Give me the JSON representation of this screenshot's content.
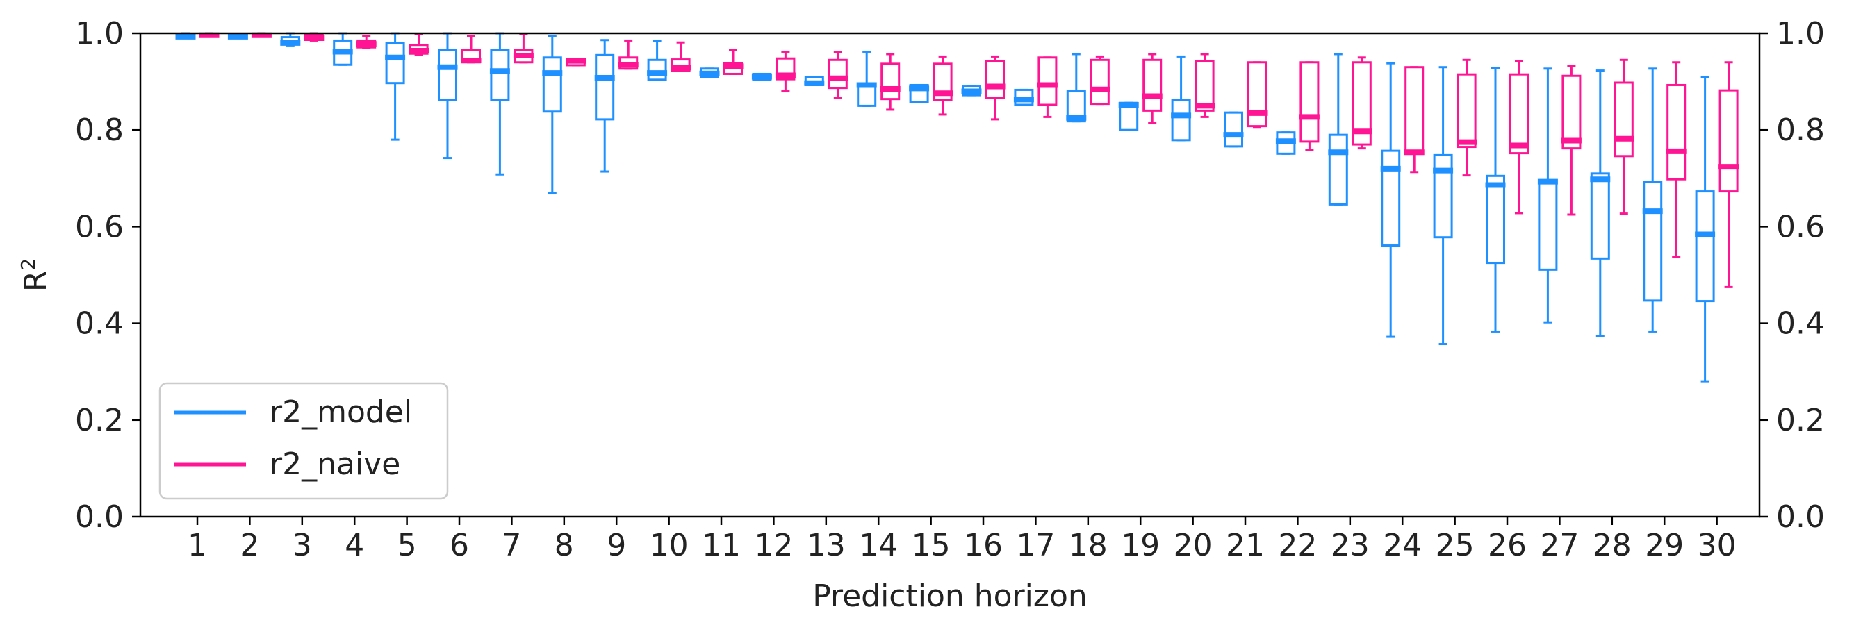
{
  "chart_data": {
    "type": "box",
    "xlabel": "Prediction horizon",
    "ylabel_base": "R",
    "ylabel_sup": "2",
    "ylim": [
      0.0,
      1.0
    ],
    "yticks": [
      0.0,
      0.2,
      0.4,
      0.6,
      0.8,
      1.0
    ],
    "ytick_labels": [
      "0.0",
      "0.2",
      "0.4",
      "0.6",
      "0.8",
      "1.0"
    ],
    "right_axis_labels": true,
    "legend_position": "lower-left",
    "categories": [
      1,
      2,
      3,
      4,
      5,
      6,
      7,
      8,
      9,
      10,
      11,
      12,
      13,
      14,
      15,
      16,
      17,
      18,
      19,
      20,
      21,
      22,
      23,
      24,
      25,
      26,
      27,
      28,
      29,
      30
    ],
    "series": [
      {
        "name": "r2_model",
        "color": "#1e90ff",
        "boxes": [
          {
            "whislo": 0.99,
            "q1": 0.991,
            "med": 0.993,
            "q3": 0.998,
            "whishi": 1.0
          },
          {
            "whislo": 0.99,
            "q1": 0.991,
            "med": 0.993,
            "q3": 0.997,
            "whishi": 0.999
          },
          {
            "whislo": 0.975,
            "q1": 0.978,
            "med": 0.98,
            "q3": 0.992,
            "whishi": 1.0
          },
          {
            "whislo": 0.935,
            "q1": 0.935,
            "med": 0.962,
            "q3": 0.985,
            "whishi": 1.0
          },
          {
            "whislo": 0.78,
            "q1": 0.897,
            "med": 0.95,
            "q3": 0.98,
            "whishi": 1.0
          },
          {
            "whislo": 0.742,
            "q1": 0.862,
            "med": 0.93,
            "q3": 0.966,
            "whishi": 1.0
          },
          {
            "whislo": 0.708,
            "q1": 0.862,
            "med": 0.922,
            "q3": 0.966,
            "whishi": 1.0
          },
          {
            "whislo": 0.67,
            "q1": 0.838,
            "med": 0.918,
            "q3": 0.95,
            "whishi": 0.994
          },
          {
            "whislo": 0.714,
            "q1": 0.822,
            "med": 0.908,
            "q3": 0.955,
            "whishi": 0.986
          },
          {
            "whislo": 0.904,
            "q1": 0.904,
            "med": 0.918,
            "q3": 0.945,
            "whishi": 0.984
          },
          {
            "whislo": 0.91,
            "q1": 0.91,
            "med": 0.917,
            "q3": 0.927,
            "whishi": 0.927
          },
          {
            "whislo": 0.903,
            "q1": 0.903,
            "med": 0.91,
            "q3": 0.916,
            "whishi": 0.916
          },
          {
            "whislo": 0.893,
            "q1": 0.893,
            "med": 0.897,
            "q3": 0.91,
            "whishi": 0.91
          },
          {
            "whislo": 0.85,
            "q1": 0.85,
            "med": 0.893,
            "q3": 0.893,
            "whishi": 0.962
          },
          {
            "whislo": 0.858,
            "q1": 0.858,
            "med": 0.886,
            "q3": 0.893,
            "whishi": 0.893
          },
          {
            "whislo": 0.872,
            "q1": 0.872,
            "med": 0.88,
            "q3": 0.89,
            "whishi": 0.89
          },
          {
            "whislo": 0.852,
            "q1": 0.852,
            "med": 0.863,
            "q3": 0.883,
            "whishi": 0.883
          },
          {
            "whislo": 0.818,
            "q1": 0.818,
            "med": 0.825,
            "q3": 0.88,
            "whishi": 0.957
          },
          {
            "whislo": 0.8,
            "q1": 0.8,
            "med": 0.852,
            "q3": 0.856,
            "whishi": 0.856
          },
          {
            "whislo": 0.779,
            "q1": 0.779,
            "med": 0.83,
            "q3": 0.862,
            "whishi": 0.952
          },
          {
            "whislo": 0.766,
            "q1": 0.766,
            "med": 0.79,
            "q3": 0.836,
            "whishi": 0.836
          },
          {
            "whislo": 0.751,
            "q1": 0.751,
            "med": 0.777,
            "q3": 0.795,
            "whishi": 0.795
          },
          {
            "whislo": 0.646,
            "q1": 0.646,
            "med": 0.754,
            "q3": 0.79,
            "whishi": 0.957
          },
          {
            "whislo": 0.372,
            "q1": 0.561,
            "med": 0.72,
            "q3": 0.757,
            "whishi": 0.938
          },
          {
            "whislo": 0.357,
            "q1": 0.578,
            "med": 0.716,
            "q3": 0.748,
            "whishi": 0.93
          },
          {
            "whislo": 0.383,
            "q1": 0.525,
            "med": 0.686,
            "q3": 0.705,
            "whishi": 0.928
          },
          {
            "whislo": 0.402,
            "q1": 0.511,
            "med": 0.693,
            "q3": 0.693,
            "whishi": 0.927
          },
          {
            "whislo": 0.373,
            "q1": 0.534,
            "med": 0.698,
            "q3": 0.71,
            "whishi": 0.923
          },
          {
            "whislo": 0.383,
            "q1": 0.447,
            "med": 0.632,
            "q3": 0.692,
            "whishi": 0.927
          },
          {
            "whislo": 0.28,
            "q1": 0.446,
            "med": 0.584,
            "q3": 0.673,
            "whishi": 0.91
          }
        ]
      },
      {
        "name": "r2_naive",
        "color": "#ff1493",
        "boxes": [
          {
            "whislo": 0.993,
            "q1": 0.994,
            "med": 0.996,
            "q3": 0.999,
            "whishi": 1.0
          },
          {
            "whislo": 0.993,
            "q1": 0.994,
            "med": 0.996,
            "q3": 0.999,
            "whishi": 1.0
          },
          {
            "whislo": 0.985,
            "q1": 0.987,
            "med": 0.99,
            "q3": 0.997,
            "whishi": 1.0
          },
          {
            "whislo": 0.97,
            "q1": 0.971,
            "med": 0.978,
            "q3": 0.985,
            "whishi": 0.995
          },
          {
            "whislo": 0.955,
            "q1": 0.958,
            "med": 0.964,
            "q3": 0.976,
            "whishi": 0.998
          },
          {
            "whislo": 0.94,
            "q1": 0.94,
            "med": 0.944,
            "q3": 0.966,
            "whishi": 0.995
          },
          {
            "whislo": 0.94,
            "q1": 0.94,
            "med": 0.954,
            "q3": 0.966,
            "whishi": 0.998
          },
          {
            "whislo": 0.934,
            "q1": 0.934,
            "med": 0.943,
            "q3": 0.946,
            "whishi": 0.946
          },
          {
            "whislo": 0.927,
            "q1": 0.927,
            "med": 0.935,
            "q3": 0.95,
            "whishi": 0.985
          },
          {
            "whislo": 0.922,
            "q1": 0.922,
            "med": 0.929,
            "q3": 0.946,
            "whishi": 0.981
          },
          {
            "whislo": 0.916,
            "q1": 0.916,
            "med": 0.932,
            "q3": 0.938,
            "whishi": 0.965
          },
          {
            "whislo": 0.88,
            "q1": 0.905,
            "med": 0.913,
            "q3": 0.948,
            "whishi": 0.962
          },
          {
            "whislo": 0.866,
            "q1": 0.887,
            "med": 0.907,
            "q3": 0.945,
            "whishi": 0.961
          },
          {
            "whislo": 0.842,
            "q1": 0.864,
            "med": 0.885,
            "q3": 0.937,
            "whishi": 0.957
          },
          {
            "whislo": 0.832,
            "q1": 0.862,
            "med": 0.876,
            "q3": 0.937,
            "whishi": 0.952
          },
          {
            "whislo": 0.822,
            "q1": 0.866,
            "med": 0.89,
            "q3": 0.942,
            "whishi": 0.952
          },
          {
            "whislo": 0.827,
            "q1": 0.852,
            "med": 0.893,
            "q3": 0.95,
            "whishi": 0.95
          },
          {
            "whislo": 0.854,
            "q1": 0.854,
            "med": 0.884,
            "q3": 0.945,
            "whishi": 0.952
          },
          {
            "whislo": 0.814,
            "q1": 0.84,
            "med": 0.87,
            "q3": 0.945,
            "whishi": 0.957
          },
          {
            "whislo": 0.827,
            "q1": 0.84,
            "med": 0.85,
            "q3": 0.942,
            "whishi": 0.957
          },
          {
            "whislo": 0.805,
            "q1": 0.808,
            "med": 0.835,
            "q3": 0.94,
            "whishi": 0.94
          },
          {
            "whislo": 0.759,
            "q1": 0.776,
            "med": 0.827,
            "q3": 0.94,
            "whishi": 0.94
          },
          {
            "whislo": 0.762,
            "q1": 0.77,
            "med": 0.797,
            "q3": 0.94,
            "whishi": 0.95
          },
          {
            "whislo": 0.713,
            "q1": 0.754,
            "med": 0.754,
            "q3": 0.93,
            "whishi": 0.93
          },
          {
            "whislo": 0.706,
            "q1": 0.765,
            "med": 0.775,
            "q3": 0.915,
            "whishi": 0.945
          },
          {
            "whislo": 0.628,
            "q1": 0.752,
            "med": 0.768,
            "q3": 0.915,
            "whishi": 0.942
          },
          {
            "whislo": 0.625,
            "q1": 0.762,
            "med": 0.778,
            "q3": 0.912,
            "whishi": 0.932
          },
          {
            "whislo": 0.627,
            "q1": 0.746,
            "med": 0.782,
            "q3": 0.898,
            "whishi": 0.945
          },
          {
            "whislo": 0.538,
            "q1": 0.698,
            "med": 0.756,
            "q3": 0.893,
            "whishi": 0.94
          },
          {
            "whislo": 0.475,
            "q1": 0.673,
            "med": 0.724,
            "q3": 0.882,
            "whishi": 0.94
          }
        ]
      }
    ]
  }
}
